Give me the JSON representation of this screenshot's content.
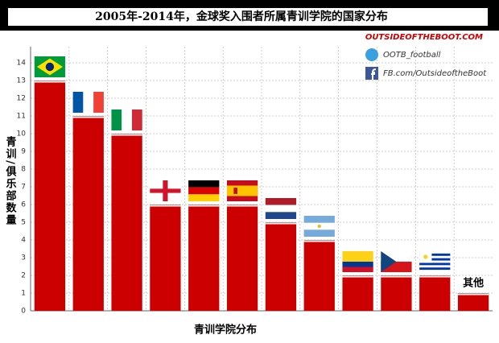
{
  "chart_data": {
    "type": "bar",
    "title": "2005年-2014年，金球奖入围者所属青训学院的国家分布",
    "brand": "OUTSIDEOFTHEBOOT.COM",
    "twitter": "OOTB_football",
    "facebook": "FB.com/OutsideoftheBoot",
    "y_label": "青训/俱乐部数量",
    "x_label": "青训学院分布",
    "categories": [
      null,
      null,
      null,
      null,
      null,
      null,
      null,
      null,
      null,
      null,
      null,
      "其他"
    ],
    "values": [
      13,
      11,
      10,
      6,
      6,
      6,
      5,
      4,
      2,
      2,
      2,
      1
    ],
    "color": "#cc0000",
    "ylim": [
      0,
      14
    ],
    "yticks": [
      0,
      1,
      2,
      3,
      4,
      5,
      6,
      7,
      8,
      9,
      10,
      11,
      12,
      13,
      14
    ],
    "grid": true
  }
}
